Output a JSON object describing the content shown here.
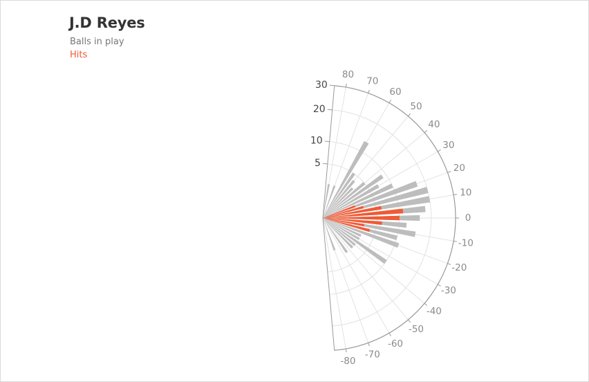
{
  "header": {
    "player": "J.D Reyes",
    "legend_balls_in_play": "Balls in play",
    "legend_hits": "Hits"
  },
  "colors": {
    "balls_in_play": "#bdbdbd",
    "hits": "#f05a35",
    "axis": "#999999",
    "grid": "#e2e2e2"
  },
  "chart_data": {
    "type": "bar",
    "subtype": "polar-radial-bar",
    "title": "J.D Reyes",
    "angle_unit": "degrees",
    "angle_range": [
      -85,
      85
    ],
    "angle_ticks": [
      80,
      70,
      60,
      50,
      40,
      30,
      20,
      10,
      0,
      -10,
      -20,
      -30,
      -40,
      -50,
      -60,
      -70,
      -80
    ],
    "radial_scale": "sqrt",
    "radial_ticks": [
      5,
      10,
      20,
      30
    ],
    "rmax": 30,
    "angle_bins": [
      80,
      75,
      70,
      65,
      60,
      55,
      50,
      45,
      40,
      35,
      30,
      25,
      20,
      15,
      10,
      5,
      0,
      -5,
      -10,
      -15,
      -20,
      -25,
      -30,
      -35,
      -40,
      -45,
      -50,
      -55,
      -60,
      -65,
      -70,
      -75,
      -80
    ],
    "series": [
      {
        "name": "Balls in play",
        "values": [
          2,
          0,
          2,
          0,
          13,
          5,
          4,
          3,
          5,
          9,
          7,
          10,
          17,
          20,
          20,
          18,
          16,
          12,
          15,
          10,
          11,
          3,
          3,
          10,
          3,
          3,
          0,
          3,
          0,
          0,
          2,
          0,
          0
        ]
      },
      {
        "name": "Hits",
        "values": [
          0,
          0,
          0,
          0,
          0,
          0,
          0,
          0,
          0,
          0,
          0,
          0,
          2,
          3,
          6,
          11,
          10,
          6,
          3,
          4,
          0,
          0,
          0,
          0,
          0,
          0,
          0,
          0,
          0,
          0,
          0,
          0,
          0
        ]
      }
    ]
  }
}
